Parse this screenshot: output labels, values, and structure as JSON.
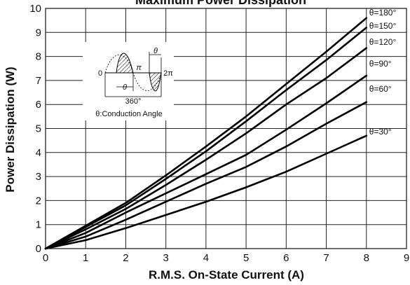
{
  "chart_data": {
    "type": "line",
    "title": "Maximum Power Dissipation",
    "xlabel": "R.M.S. On-State Current (A)",
    "ylabel": "Power Dissipation (W)",
    "xlim": [
      0,
      9
    ],
    "ylim": [
      0,
      10
    ],
    "xticks": [
      "0",
      "1",
      "2",
      "3",
      "4",
      "5",
      "6",
      "7",
      "8",
      "9"
    ],
    "yticks": [
      "0",
      "1",
      "2",
      "3",
      "4",
      "5",
      "6",
      "7",
      "8",
      "9",
      "10"
    ],
    "grid": true,
    "series": [
      {
        "name": "θ=180°",
        "x": [
          0,
          1,
          2,
          3,
          4,
          5,
          6,
          7,
          8
        ],
        "y": [
          0,
          0.95,
          1.9,
          3.05,
          4.25,
          5.5,
          6.85,
          8.2,
          9.6
        ]
      },
      {
        "name": "θ=150°",
        "x": [
          0,
          1,
          2,
          3,
          4,
          5,
          6,
          7,
          8
        ],
        "y": [
          0,
          0.9,
          1.8,
          2.9,
          4.05,
          5.3,
          6.6,
          7.85,
          9.2
        ]
      },
      {
        "name": "θ=120°",
        "x": [
          0,
          1,
          2,
          3,
          4,
          5,
          6,
          7,
          8
        ],
        "y": [
          0,
          0.8,
          1.65,
          2.65,
          3.7,
          4.8,
          6.0,
          7.1,
          8.35
        ]
      },
      {
        "name": "θ=90°",
        "x": [
          0,
          1,
          2,
          3,
          4,
          5,
          6,
          7,
          8
        ],
        "y": [
          0,
          0.65,
          1.5,
          2.3,
          3.1,
          3.9,
          4.95,
          6.05,
          7.2
        ]
      },
      {
        "name": "θ=60°",
        "x": [
          0,
          1,
          2,
          3,
          4,
          5,
          6,
          7,
          8
        ],
        "y": [
          0,
          0.5,
          1.2,
          1.95,
          2.7,
          3.4,
          4.25,
          5.2,
          6.1
        ]
      },
      {
        "name": "θ=30°",
        "x": [
          0,
          1,
          2,
          3,
          4,
          5,
          6,
          7,
          8
        ],
        "y": [
          0,
          0.35,
          0.85,
          1.4,
          1.95,
          2.55,
          3.2,
          3.95,
          4.7
        ]
      }
    ],
    "inset": {
      "caption": "θ:Conduction Angle",
      "labels": [
        "0",
        "π",
        "2π",
        "θ",
        "θ",
        "360°"
      ]
    }
  }
}
